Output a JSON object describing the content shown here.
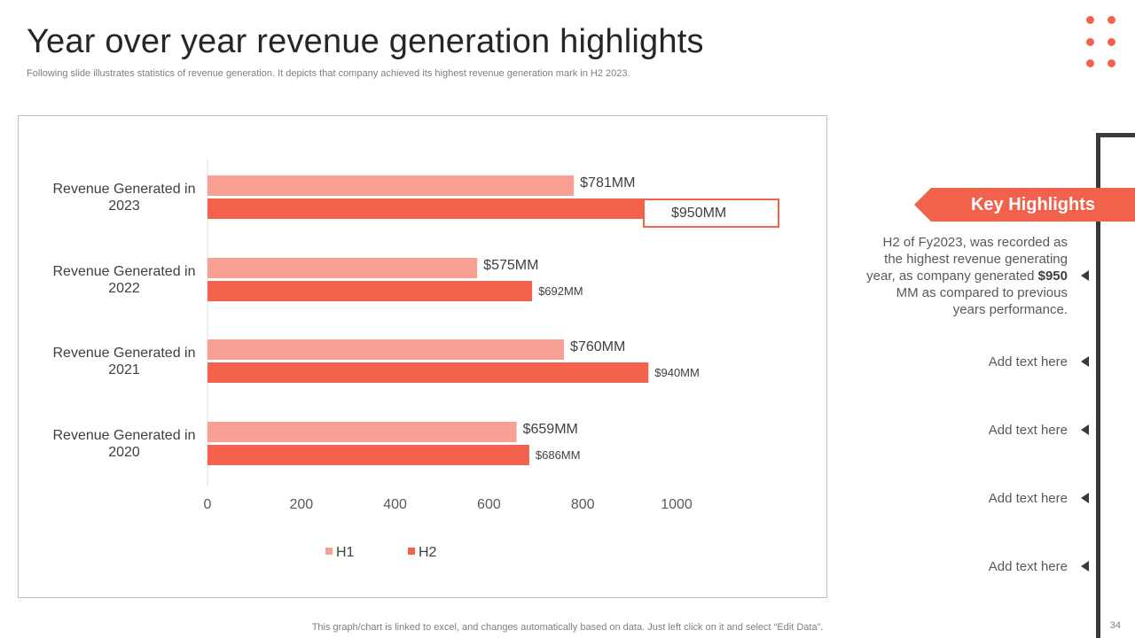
{
  "header": {
    "title": "Year over year revenue generation highlights",
    "subtitle": "Following slide illustrates statistics of revenue generation. It depicts that company achieved its highest revenue generation mark in H2 2023."
  },
  "colors": {
    "h1": "#F8A094",
    "h2": "#F4614C",
    "accent": "#F2614C",
    "dark": "#3A3A3A"
  },
  "chart_data": {
    "type": "bar",
    "orientation": "horizontal",
    "categories": [
      "Revenue Generated in 2023",
      "Revenue Generated in 2022",
      "Revenue Generated in 2021",
      "Revenue Generated in 2020"
    ],
    "category_lines": [
      [
        "Revenue Generated in",
        "2023"
      ],
      [
        "Revenue Generated in",
        "2022"
      ],
      [
        "Revenue Generated in",
        "2021"
      ],
      [
        "Revenue Generated in",
        "2020"
      ]
    ],
    "series": [
      {
        "name": "H1",
        "values": [
          781,
          575,
          760,
          659
        ],
        "labels": [
          "$781MM",
          "$575MM",
          "$760MM",
          "$659MM"
        ]
      },
      {
        "name": "H2",
        "values": [
          950,
          692,
          940,
          686
        ],
        "labels": [
          "$950MM",
          "$692MM",
          "$940MM",
          "$686MM"
        ]
      }
    ],
    "xlim": [
      0,
      1000
    ],
    "xticks": [
      "0",
      "200",
      "400",
      "600",
      "800",
      "1000"
    ],
    "highlighted_label": "$950MM",
    "legend": [
      "H1",
      "H2"
    ],
    "legend_position": "bottom"
  },
  "highlights": {
    "banner": "Key Highlights",
    "main_prefix": "H2 of Fy2023, was recorded as the highest revenue generating year, as company generated ",
    "main_bold": "$950",
    "main_suffix": " MM as compared to previous years performance.",
    "items": [
      "Add text here",
      "Add text here",
      "Add text here",
      "Add text here"
    ]
  },
  "footer": {
    "note": "This graph/chart is linked to excel,  and changes automatically based on data. Just left click on it and select “Edit Data”.",
    "page": "34"
  }
}
